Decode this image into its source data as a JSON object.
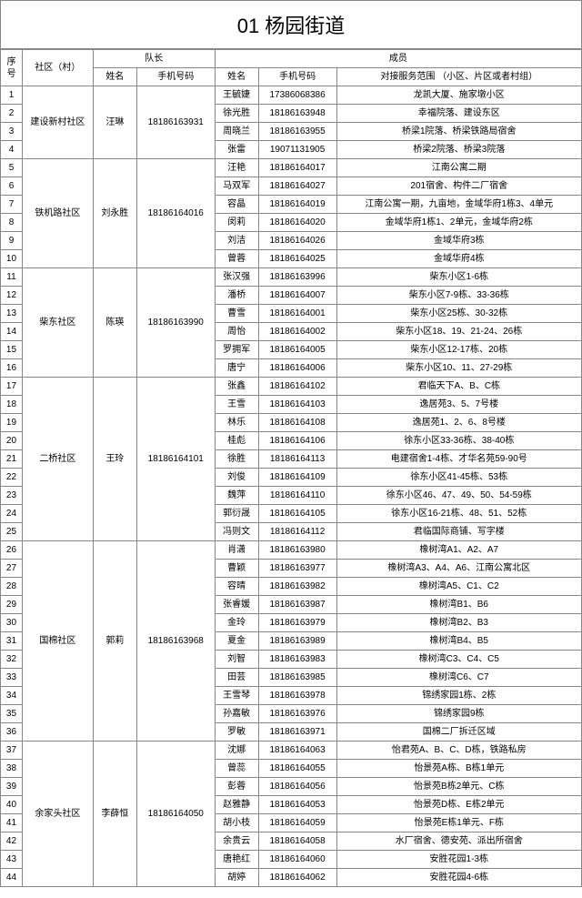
{
  "title": "01 杨园街道",
  "headers": {
    "idx": "序号",
    "community": "社区（村）",
    "leader": "队长",
    "leaderName": "姓名",
    "leaderPhone": "手机号码",
    "members": "成员",
    "memberName": "姓名",
    "memberPhone": "手机号码",
    "scope": "对接服务范围\n（小区、片区或者村组）"
  },
  "groups": [
    {
      "community": "建设新村社区",
      "leaderName": "汪琳",
      "leaderPhone": "18186163931",
      "startIdx": 1,
      "members": [
        {
          "name": "王毓婕",
          "phone": "17386068386",
          "scope": "龙凯大厦、施家墩小区"
        },
        {
          "name": "徐光胜",
          "phone": "18186163948",
          "scope": "幸福院落、建设东区"
        },
        {
          "name": "周晓兰",
          "phone": "18186163955",
          "scope": "桥梁1院落、桥梁铁路局宿舍"
        },
        {
          "name": "张雷",
          "phone": "19071131905",
          "scope": "桥梁2院落、桥梁3院落"
        }
      ]
    },
    {
      "community": "铁机路社区",
      "leaderName": "刘永胜",
      "leaderPhone": "18186164016",
      "startIdx": 5,
      "members": [
        {
          "name": "汪艳",
          "phone": "18186164017",
          "scope": "江南公寓二期"
        },
        {
          "name": "马双军",
          "phone": "18186164027",
          "scope": "201宿舍、构件二厂宿舍"
        },
        {
          "name": "容晶",
          "phone": "18186164019",
          "scope": "江南公寓一期，九亩地，金域华府1栋3、4单元"
        },
        {
          "name": "闵莉",
          "phone": "18186164020",
          "scope": "金域华府1栋1、2单元，金域华府2栋"
        },
        {
          "name": "刘洁",
          "phone": "18186164026",
          "scope": "金域华府3栋"
        },
        {
          "name": "曾蓉",
          "phone": "18186164025",
          "scope": "金域华府4栋"
        }
      ]
    },
    {
      "community": "柴东社区",
      "leaderName": "陈瑛",
      "leaderPhone": "18186163990",
      "startIdx": 11,
      "members": [
        {
          "name": "张汉强",
          "phone": "18186163996",
          "scope": "柴东小区1-6栋"
        },
        {
          "name": "潘桥",
          "phone": "18186164007",
          "scope": "柴东小区7-9栋、33-36栋"
        },
        {
          "name": "曹雪",
          "phone": "18186164001",
          "scope": "柴东小区25栋、30-32栋"
        },
        {
          "name": "周怡",
          "phone": "18186164002",
          "scope": "柴东小区18、19、21-24、26栋"
        },
        {
          "name": "罗拥军",
          "phone": "18186164005",
          "scope": "柴东小区12-17栋、20栋"
        },
        {
          "name": "唐宁",
          "phone": "18186164006",
          "scope": "柴东小区10、11、27-29栋"
        }
      ]
    },
    {
      "community": "二桥社区",
      "leaderName": "王玲",
      "leaderPhone": "18186164101",
      "startIdx": 17,
      "members": [
        {
          "name": "张鑫",
          "phone": "18186164102",
          "scope": "君临天下A、B、C栋"
        },
        {
          "name": "王雪",
          "phone": "18186164103",
          "scope": "逸居苑3、5、7号楼"
        },
        {
          "name": "林乐",
          "phone": "18186164108",
          "scope": "逸居苑1、2、6、8号楼"
        },
        {
          "name": "桂彪",
          "phone": "18186164106",
          "scope": "徐东小区33-36栋、38-40栋"
        },
        {
          "name": "徐胜",
          "phone": "18186164113",
          "scope": "电建宿舍1-4栋、才华名苑59-90号"
        },
        {
          "name": "刘俊",
          "phone": "18186164109",
          "scope": "徐东小区41-45栋、53栋"
        },
        {
          "name": "魏萍",
          "phone": "18186164110",
          "scope": "徐东小区46、47、49、50、54-59栋"
        },
        {
          "name": "郭衍晟",
          "phone": "18186164105",
          "scope": "徐东小区16-21栋、48、51、52栋"
        },
        {
          "name": "冯则文",
          "phone": "18186164112",
          "scope": "君临国际商铺、写字楼"
        }
      ]
    },
    {
      "community": "国棉社区",
      "leaderName": "郭莉",
      "leaderPhone": "18186163968",
      "startIdx": 26,
      "members": [
        {
          "name": "肖潇",
          "phone": "18186163980",
          "scope": "橡树湾A1、A2、A7"
        },
        {
          "name": "曹颖",
          "phone": "18186163977",
          "scope": "橡树湾A3、A4、A6、江南公寓北区"
        },
        {
          "name": "容晴",
          "phone": "18186163982",
          "scope": "橡树湾A5、C1、C2"
        },
        {
          "name": "张睿媛",
          "phone": "18186163987",
          "scope": "橡树湾B1、B6"
        },
        {
          "name": "金玲",
          "phone": "18186163979",
          "scope": "橡树湾B2、B3"
        },
        {
          "name": "夏金",
          "phone": "18186163989",
          "scope": "橡树湾B4、B5"
        },
        {
          "name": "刘智",
          "phone": "18186163983",
          "scope": "橡树湾C3、C4、C5"
        },
        {
          "name": "田芸",
          "phone": "18186163985",
          "scope": "橡树湾C6、C7"
        },
        {
          "name": "王雪琴",
          "phone": "18186163978",
          "scope": "锦绣家园1栋、2栋"
        },
        {
          "name": "孙嘉敏",
          "phone": "18186163976",
          "scope": "锦绣家园9栋"
        },
        {
          "name": "罗敏",
          "phone": "18186163971",
          "scope": "国棉二厂拆迁区域"
        }
      ]
    },
    {
      "community": "余家头社区",
      "leaderName": "李薛恒",
      "leaderPhone": "18186164050",
      "startIdx": 37,
      "members": [
        {
          "name": "沈娜",
          "phone": "18186164063",
          "scope": "怡君苑A、B、C、D栋，铁路私房"
        },
        {
          "name": "曾蕊",
          "phone": "18186164055",
          "scope": "怡景苑A栋、B栋1单元"
        },
        {
          "name": "彭蓉",
          "phone": "18186164056",
          "scope": "怡景苑B栋2单元、C栋"
        },
        {
          "name": "赵雅静",
          "phone": "18186164053",
          "scope": "怡景苑D栋、E栋2单元"
        },
        {
          "name": "胡小枝",
          "phone": "18186164059",
          "scope": "怡景苑E栋1单元、F栋"
        },
        {
          "name": "余贵云",
          "phone": "18186164058",
          "scope": "水厂宿舍、德安苑、派出所宿舍"
        },
        {
          "name": "唐艳红",
          "phone": "18186164060",
          "scope": "安胜花园1-3栋"
        },
        {
          "name": "胡婷",
          "phone": "18186164062",
          "scope": "安胜花园4-6栋"
        }
      ]
    }
  ]
}
